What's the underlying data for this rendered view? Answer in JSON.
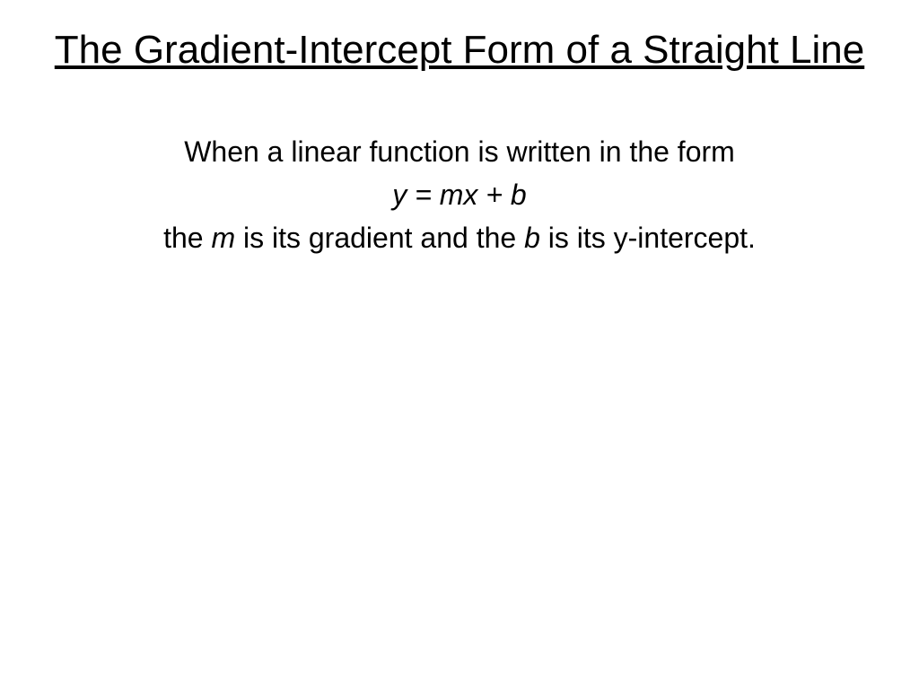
{
  "slide": {
    "title": "The Gradient-Intercept Form of a Straight Line",
    "body": {
      "line1": "When a linear function is written in the form",
      "formula_pre": "y = mx + b",
      "line3_pre": "the ",
      "line3_m": "m",
      "line3_mid": " is its gradient and the ",
      "line3_b": "b",
      "line3_post": " is its y-intercept."
    }
  },
  "style": {
    "background": "#ffffff",
    "text_color": "#000000",
    "title_fontsize": 44,
    "body_fontsize": 32,
    "font_family": "Arial"
  }
}
